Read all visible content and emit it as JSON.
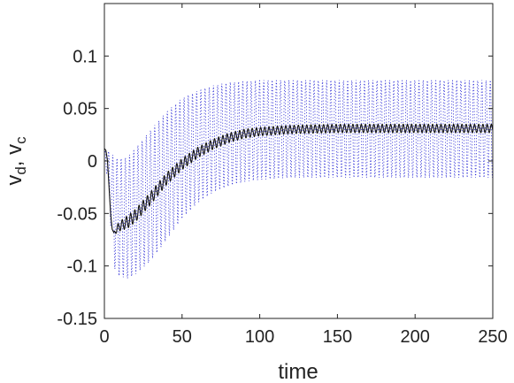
{
  "chart_data": {
    "type": "line",
    "title": "",
    "xlabel": "time",
    "ylabel": {
      "parts": [
        {
          "text": "v",
          "sub": false
        },
        {
          "text": "d",
          "sub": true
        },
        {
          "text": ", v",
          "sub": false
        },
        {
          "text": "c",
          "sub": true
        }
      ]
    },
    "xlim": [
      0,
      250
    ],
    "ylim": [
      -0.15,
      0.15
    ],
    "x_ticks": [
      0,
      50,
      100,
      150,
      200,
      250
    ],
    "x_tick_labels": [
      "0",
      "50",
      "100",
      "150",
      "200",
      "250"
    ],
    "y_ticks": [
      -0.15,
      -0.1,
      -0.05,
      0,
      0.05,
      0.1
    ],
    "y_tick_labels": [
      "-0.15",
      "-0.1",
      "-0.05",
      "0",
      "0.05",
      "0.1"
    ],
    "grid": false,
    "legend": "none",
    "series": [
      {
        "style": "dotted",
        "color": "#2a2ad6",
        "oscillation_period": 2.7,
        "x": [
          0,
          2,
          4,
          6,
          8,
          10,
          15,
          20,
          30,
          40,
          50,
          60,
          70,
          80,
          90,
          100,
          120,
          150,
          200,
          250
        ],
        "upper": [
          0.012,
          0.01,
          0.008,
          0.005,
          0.003,
          0.002,
          0.004,
          0.012,
          0.03,
          0.047,
          0.06,
          0.067,
          0.072,
          0.075,
          0.076,
          0.077,
          0.077,
          0.077,
          0.077,
          0.077
        ],
        "lower": [
          0.012,
          -0.02,
          -0.06,
          -0.1,
          -0.108,
          -0.11,
          -0.112,
          -0.108,
          -0.095,
          -0.075,
          -0.055,
          -0.04,
          -0.03,
          -0.024,
          -0.02,
          -0.018,
          -0.016,
          -0.016,
          -0.016,
          -0.016
        ]
      },
      {
        "style": "solid",
        "color": "#111111",
        "oscillation_period": 2.7,
        "x": [
          0,
          1,
          2,
          3,
          4,
          5,
          6,
          7,
          8,
          10,
          15,
          20,
          30,
          40,
          50,
          60,
          70,
          80,
          90,
          100,
          120,
          150,
          200,
          250
        ],
        "y": [
          0.012,
          0.01,
          0.0,
          -0.025,
          -0.05,
          -0.065,
          -0.068,
          -0.067,
          -0.065,
          -0.062,
          -0.058,
          -0.052,
          -0.035,
          -0.017,
          -0.003,
          0.008,
          0.016,
          0.022,
          0.026,
          0.028,
          0.03,
          0.031,
          0.031,
          0.031
        ],
        "amplitude": {
          "x": [
            0,
            6,
            8,
            15,
            30,
            60,
            100,
            150,
            200,
            250
          ],
          "a": [
            0,
            0,
            0.004,
            0.006,
            0.006,
            0.005,
            0.004,
            0.004,
            0.004,
            0.004
          ]
        }
      }
    ]
  }
}
